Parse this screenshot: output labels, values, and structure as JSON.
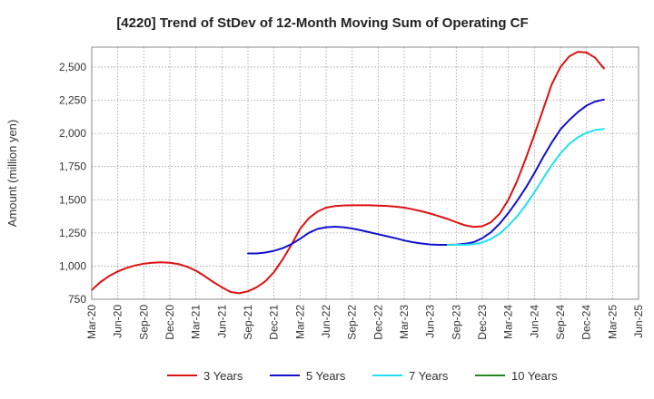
{
  "chart_data": {
    "type": "line",
    "title": "[4220]  Trend of StDev of 12-Month Moving Sum of Operating CF",
    "xlabel": "",
    "ylabel": "Amount (million yen)",
    "ylim": [
      750,
      2650
    ],
    "yticks": [
      750,
      1000,
      1250,
      1500,
      1750,
      2000,
      2250,
      2500
    ],
    "ytick_labels": [
      "750",
      "1,000",
      "1,250",
      "1,500",
      "1,750",
      "2,000",
      "2,250",
      "2,500"
    ],
    "xticks": [
      "Mar-20",
      "Jun-20",
      "Sep-20",
      "Dec-20",
      "Mar-21",
      "Jun-21",
      "Sep-21",
      "Dec-21",
      "Mar-22",
      "Jun-22",
      "Sep-22",
      "Dec-22",
      "Mar-23",
      "Jun-23",
      "Sep-23",
      "Dec-23",
      "Mar-24",
      "Jun-24",
      "Sep-24",
      "Dec-24",
      "Mar-25",
      "Jun-25"
    ],
    "grid": true,
    "legend_position": "bottom",
    "series": [
      {
        "name": "3 Years",
        "color": "#dd1111",
        "start_index": 0,
        "values": [
          820,
          880,
          925,
          960,
          985,
          1005,
          1018,
          1025,
          1028,
          1025,
          1015,
          995,
          965,
          925,
          880,
          840,
          805,
          795,
          810,
          840,
          885,
          955,
          1050,
          1160,
          1280,
          1360,
          1410,
          1440,
          1452,
          1457,
          1458,
          1458,
          1458,
          1456,
          1453,
          1448,
          1440,
          1428,
          1413,
          1396,
          1376,
          1355,
          1330,
          1308,
          1295,
          1300,
          1330,
          1395,
          1500,
          1640,
          1810,
          1990,
          2180,
          2370,
          2500,
          2580,
          2615,
          2610,
          2570,
          2490
        ]
      },
      {
        "name": "5 Years",
        "color": "#1111cc",
        "start_index": 18,
        "values": [
          1095,
          1095,
          1102,
          1115,
          1135,
          1165,
          1205,
          1250,
          1280,
          1293,
          1297,
          1293,
          1283,
          1270,
          1255,
          1240,
          1225,
          1210,
          1193,
          1180,
          1170,
          1163,
          1160,
          1160,
          1162,
          1168,
          1180,
          1210,
          1255,
          1320,
          1400,
          1490,
          1590,
          1700,
          1820,
          1930,
          2030,
          2100,
          2160,
          2210,
          2240,
          2255
        ]
      },
      {
        "name": "7 Years",
        "color": "#22e0f0",
        "start_index": 41,
        "values": [
          1160,
          1160,
          1160,
          1165,
          1178,
          1205,
          1245,
          1305,
          1375,
          1460,
          1555,
          1660,
          1760,
          1850,
          1920,
          1970,
          2005,
          2025,
          2033
        ]
      },
      {
        "name": "10 Years",
        "color": "#228822",
        "start_index": 60,
        "values": []
      }
    ]
  }
}
